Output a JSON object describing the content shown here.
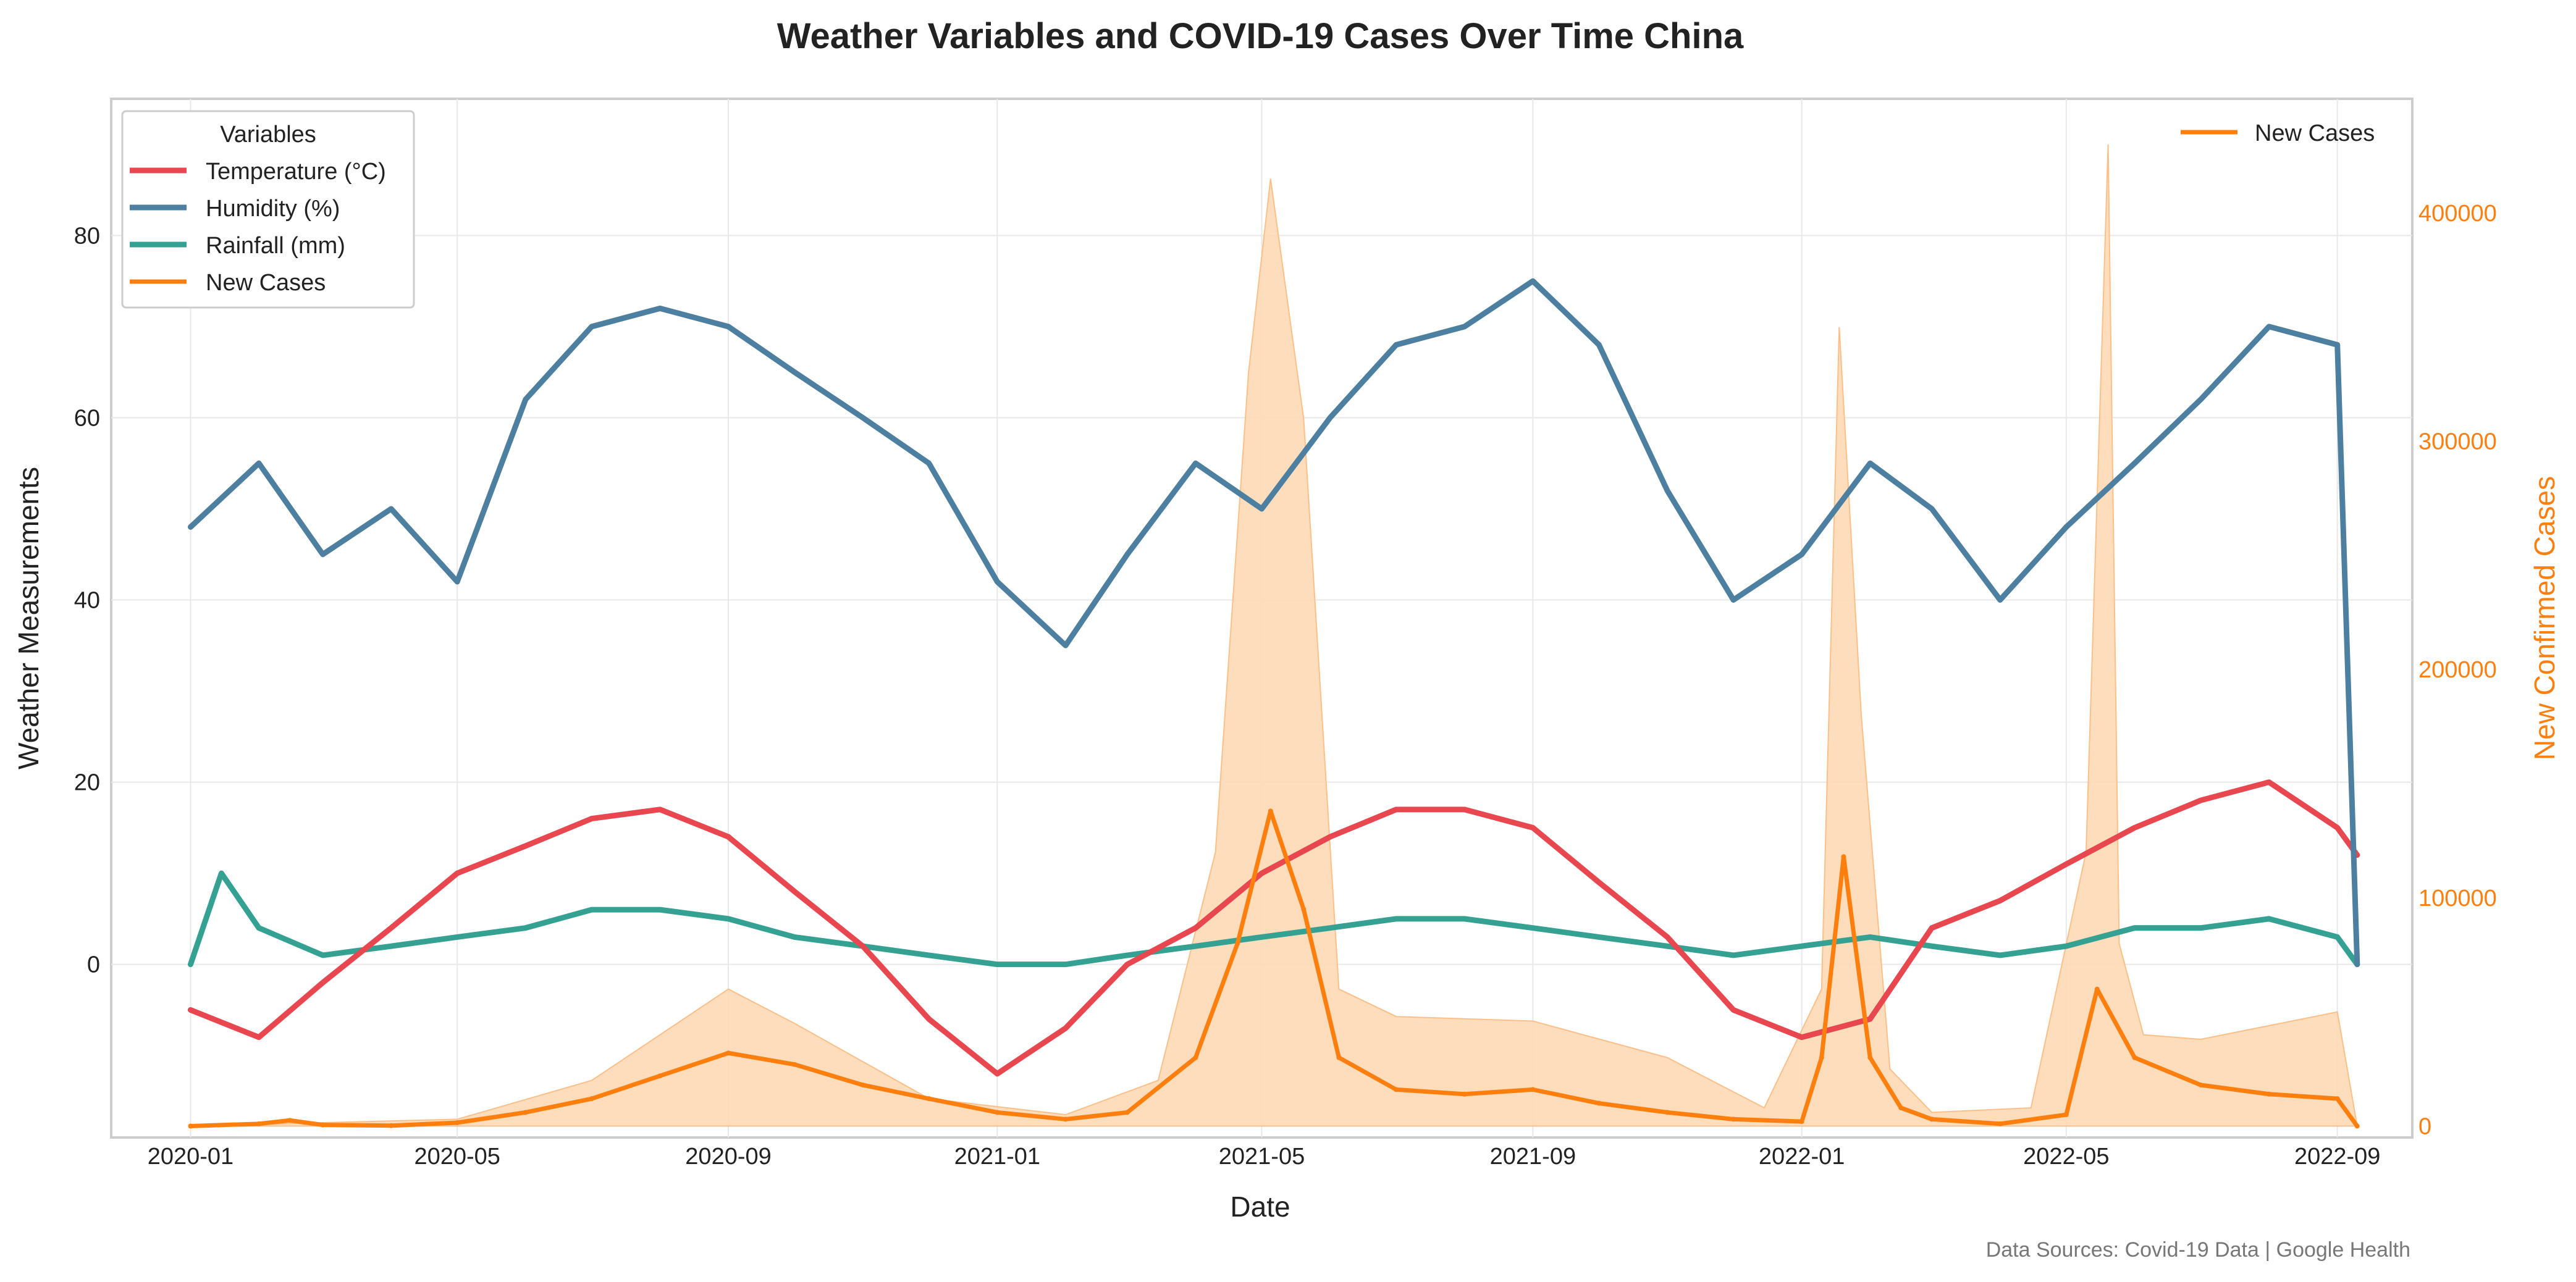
{
  "chart_data": {
    "type": "line",
    "title": "Weather Variables and COVID-19 Cases Over Time China",
    "xlabel": "Date",
    "ylabel": "Weather Measurements",
    "ylabel_right": "New Confirmed Cases",
    "x_ticks": [
      "2020-01",
      "2020-05",
      "2020-09",
      "2021-01",
      "2021-05",
      "2021-09",
      "2022-01",
      "2022-05",
      "2022-09"
    ],
    "y_ticks_left": [
      "0",
      "20",
      "40",
      "60",
      "80"
    ],
    "y_ticks_right": [
      "0",
      "100000",
      "200000",
      "300000",
      "400000"
    ],
    "ylim_left": [
      -19,
      95
    ],
    "ylim_right": [
      -5000,
      450000
    ],
    "x_range": [
      "2019-11-26",
      "2022-10-05"
    ],
    "grid": true,
    "legend_title": "Variables",
    "legend_entries": [
      "Temperature (°C)",
      "Humidity (%)",
      "Rainfall (mm)",
      "New Cases"
    ],
    "legend_right_entry": "New Cases",
    "source_note": "Data Sources: Covid-19 Data | Google Health",
    "colors": {
      "temperature": "#e8474f",
      "humidity": "#4d7fa0",
      "rainfall": "#35a193",
      "cases": "#ff7f0e",
      "cases_band": "#fdd9b5"
    },
    "series": [
      {
        "name": "Temperature (°C)",
        "axis": "left",
        "x": [
          "2020-01-01",
          "2020-02-01",
          "2020-03-01",
          "2020-04-01",
          "2020-05-01",
          "2020-06-01",
          "2020-07-01",
          "2020-08-01",
          "2020-09-01",
          "2020-10-01",
          "2020-11-01",
          "2020-12-01",
          "2021-01-01",
          "2021-02-01",
          "2021-03-01",
          "2021-04-01",
          "2021-05-01",
          "2021-06-01",
          "2021-07-01",
          "2021-08-01",
          "2021-09-01",
          "2021-10-01",
          "2021-11-01",
          "2021-12-01",
          "2022-01-01",
          "2022-02-01",
          "2022-03-01",
          "2022-04-01",
          "2022-05-01",
          "2022-06-01",
          "2022-07-01",
          "2022-08-01",
          "2022-09-01",
          "2022-09-10"
        ],
        "values": [
          -5,
          -8,
          -2,
          4,
          10,
          13,
          16,
          17,
          14,
          8,
          2,
          -6,
          -12,
          -7,
          0,
          4,
          10,
          14,
          17,
          17,
          15,
          9,
          3,
          -5,
          -8,
          -6,
          4,
          7,
          11,
          15,
          18,
          20,
          15,
          12
        ]
      },
      {
        "name": "Humidity (%)",
        "axis": "left",
        "x": [
          "2020-01-01",
          "2020-02-01",
          "2020-03-01",
          "2020-04-01",
          "2020-05-01",
          "2020-06-01",
          "2020-07-01",
          "2020-08-01",
          "2020-09-01",
          "2020-10-01",
          "2020-11-01",
          "2020-12-01",
          "2021-01-01",
          "2021-02-01",
          "2021-03-01",
          "2021-04-01",
          "2021-05-01",
          "2021-06-01",
          "2021-07-01",
          "2021-08-01",
          "2021-09-01",
          "2021-10-01",
          "2021-11-01",
          "2021-12-01",
          "2022-01-01",
          "2022-02-01",
          "2022-03-01",
          "2022-04-01",
          "2022-05-01",
          "2022-06-01",
          "2022-07-01",
          "2022-08-01",
          "2022-09-01",
          "2022-09-10"
        ],
        "values": [
          48,
          55,
          45,
          50,
          42,
          62,
          70,
          72,
          70,
          65,
          60,
          55,
          42,
          35,
          45,
          55,
          50,
          60,
          68,
          70,
          75,
          68,
          52,
          40,
          45,
          55,
          50,
          40,
          48,
          55,
          62,
          70,
          68,
          0
        ]
      },
      {
        "name": "Rainfall (mm)",
        "axis": "left",
        "x": [
          "2020-01-01",
          "2020-01-15",
          "2020-02-01",
          "2020-03-01",
          "2020-04-01",
          "2020-05-01",
          "2020-06-01",
          "2020-07-01",
          "2020-08-01",
          "2020-09-01",
          "2020-10-01",
          "2020-11-01",
          "2020-12-01",
          "2021-01-01",
          "2021-02-01",
          "2021-03-01",
          "2021-04-01",
          "2021-05-01",
          "2021-06-01",
          "2021-07-01",
          "2021-08-01",
          "2021-09-01",
          "2021-10-01",
          "2021-11-01",
          "2021-12-01",
          "2022-01-01",
          "2022-02-01",
          "2022-03-01",
          "2022-04-01",
          "2022-05-01",
          "2022-06-01",
          "2022-07-01",
          "2022-08-01",
          "2022-09-01",
          "2022-09-10"
        ],
        "values": [
          0,
          10,
          4,
          1,
          2,
          3,
          4,
          6,
          6,
          5,
          3,
          2,
          1,
          0,
          0,
          1,
          2,
          3,
          4,
          5,
          5,
          4,
          3,
          2,
          1,
          2,
          3,
          2,
          1,
          2,
          4,
          4,
          5,
          3,
          0
        ]
      },
      {
        "name": "New Cases",
        "axis": "right",
        "x": [
          "2020-01-01",
          "2020-02-01",
          "2020-02-15",
          "2020-03-01",
          "2020-04-01",
          "2020-05-01",
          "2020-06-01",
          "2020-07-01",
          "2020-08-01",
          "2020-09-01",
          "2020-10-01",
          "2020-11-01",
          "2020-12-01",
          "2021-01-01",
          "2021-02-01",
          "2021-03-01",
          "2021-04-01",
          "2021-04-20",
          "2021-05-05",
          "2021-05-20",
          "2021-06-05",
          "2021-07-01",
          "2021-08-01",
          "2021-09-01",
          "2021-10-01",
          "2021-11-01",
          "2021-12-01",
          "2022-01-01",
          "2022-01-10",
          "2022-01-20",
          "2022-02-01",
          "2022-02-15",
          "2022-03-01",
          "2022-04-01",
          "2022-05-01",
          "2022-05-15",
          "2022-06-01",
          "2022-07-01",
          "2022-08-01",
          "2022-09-01",
          "2022-09-10"
        ],
        "values": [
          0,
          1000,
          2500,
          500,
          200,
          1500,
          6000,
          12000,
          22000,
          32000,
          27000,
          18000,
          12000,
          6000,
          3000,
          6000,
          30000,
          80000,
          138000,
          95000,
          30000,
          16000,
          14000,
          16000,
          10000,
          6000,
          3000,
          2000,
          30000,
          118000,
          30000,
          8000,
          3000,
          1000,
          5000,
          60000,
          30000,
          18000,
          14000,
          12000,
          0
        ]
      },
      {
        "name": "",
        "axis": "right",
        "x": [
          "2020-01-01",
          "2020-05-01",
          "2020-07-01",
          "2020-09-01",
          "2020-10-01",
          "2020-12-01",
          "2021-02-01",
          "2021-03-15",
          "2021-04-10",
          "2021-04-25",
          "2021-05-05",
          "2021-05-20",
          "2021-06-05",
          "2021-07-01",
          "2021-09-01",
          "2021-11-01",
          "2021-12-15",
          "2022-01-10",
          "2022-01-18",
          "2022-01-28",
          "2022-02-10",
          "2022-03-01",
          "2022-04-15",
          "2022-05-10",
          "2022-05-20",
          "2022-05-25",
          "2022-06-05",
          "2022-07-01",
          "2022-09-01",
          "2022-09-10"
        ],
        "values": [
          0,
          3000,
          20000,
          60000,
          45000,
          12000,
          5000,
          20000,
          120000,
          330000,
          415000,
          310000,
          60000,
          48000,
          46000,
          30000,
          8000,
          60000,
          350000,
          180000,
          25000,
          6000,
          8000,
          120000,
          430000,
          80000,
          40000,
          38000,
          50000,
          0
        ],
        "role": "band"
      }
    ]
  }
}
